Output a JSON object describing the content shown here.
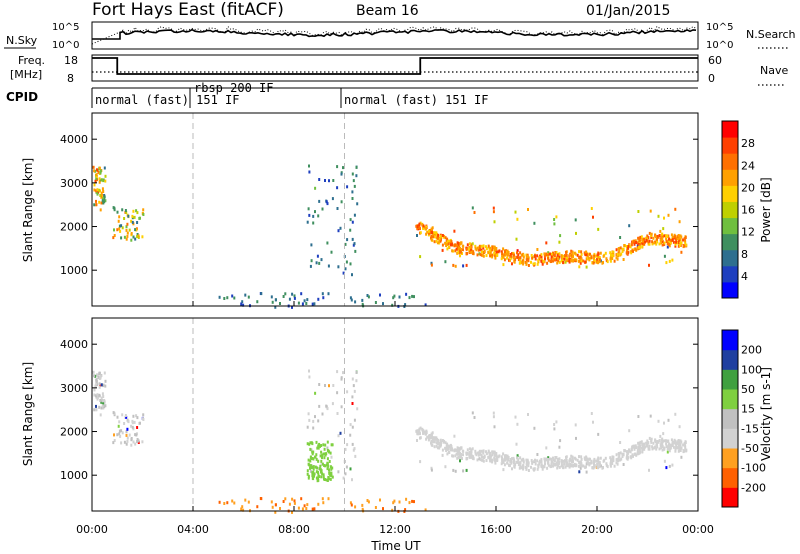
{
  "header": {
    "title": "Fort Hays East (fitACF)",
    "beam": "Beam 16",
    "date": "01/Jan/2015"
  },
  "strips": {
    "nsky_label": "N.Sky",
    "nsearch_label": "N.Search",
    "nsky_ticks": [
      "10^5",
      "10^0"
    ],
    "freq_label_1": "Freq.",
    "freq_label_2": "[MHz]",
    "freq_ticks": [
      "18",
      "8"
    ],
    "nave_label": "Nave",
    "nave_ticks": [
      "60",
      "0"
    ],
    "cpid_label": "CPID",
    "cpid_segments": [
      {
        "label": "normal (fast) 151 IF",
        "start": 0.0
      },
      {
        "label": "rbsp 200 IF",
        "start": 4.0
      },
      {
        "label": "normal (fast) 151 IF",
        "start": 10.0
      }
    ]
  },
  "colors": {
    "power_scale": [
      "#0000ff",
      "#1e3fbf",
      "#2e6f8f",
      "#3f8f5f",
      "#6fbf3f",
      "#bfd000",
      "#ffd000",
      "#ffa000",
      "#ff7000",
      "#ff4000",
      "#ff0000"
    ],
    "velocity_scale": [
      "#ff0000",
      "#ff6000",
      "#ffa020",
      "#d2d2d2",
      "#c0c0c0",
      "#7fd040",
      "#40a040",
      "#2040a0",
      "#0000ff"
    ]
  },
  "chart_data": [
    {
      "type": "heatmap",
      "panel": "power",
      "xlabel": "",
      "ylabel": "Slant Range [km]",
      "xlim": [
        0,
        24
      ],
      "ylim": [
        180,
        4600
      ],
      "yticks": [
        1000,
        2000,
        3000,
        4000
      ],
      "colorbar": {
        "label": "Power [dB]",
        "range": [
          0,
          32
        ],
        "ticks": [
          "4",
          "8",
          "12",
          "16",
          "20",
          "24",
          "28"
        ]
      },
      "scatter_regions": [
        {
          "x": [
            0.0,
            0.5
          ],
          "y": [
            2400,
            3400
          ],
          "value_range": [
            8,
            28
          ]
        },
        {
          "x": [
            0.8,
            2.0
          ],
          "y": [
            1700,
            2500
          ],
          "value_range": [
            8,
            24
          ]
        },
        {
          "x": [
            8.5,
            10.5
          ],
          "y": [
            900,
            3500
          ],
          "value_range": [
            4,
            12
          ]
        },
        {
          "x": [
            12.8,
            23.5
          ],
          "y": [
            1100,
            2500
          ],
          "value_range": [
            4,
            30
          ]
        },
        {
          "x": [
            5.0,
            13.5
          ],
          "y": [
            180,
            500
          ],
          "value_range": [
            4,
            12
          ]
        }
      ],
      "echo_band": {
        "x": [
          12.8,
          23.5
        ],
        "center_km": [
          2050,
          1550,
          1450,
          1250,
          1350,
          1300,
          1750,
          1700
        ],
        "value": 28
      }
    },
    {
      "type": "heatmap",
      "panel": "velocity",
      "xlabel": "Time UT",
      "ylabel": "Slant Range [km]",
      "xlim": [
        0,
        24
      ],
      "ylim": [
        180,
        4600
      ],
      "xticks": [
        "00:00",
        "04:00",
        "08:00",
        "12:00",
        "16:00",
        "20:00",
        "00:00"
      ],
      "yticks": [
        1000,
        2000,
        3000,
        4000
      ],
      "colorbar": {
        "label": "Velocity [m s-1]",
        "range": [
          -250,
          250
        ],
        "ticks": [
          "-200",
          "-100",
          "-50",
          "-15",
          "15",
          "50",
          "100",
          "200"
        ]
      },
      "dominant_velocity_ms": [
        -15,
        15
      ],
      "ground_scatter_regions": [
        {
          "x": [
            12.8,
            23.5
          ],
          "y": [
            1100,
            2500
          ]
        },
        {
          "x": [
            0.0,
            0.5
          ],
          "y": [
            2400,
            3400
          ]
        },
        {
          "x": [
            0.8,
            2.0
          ],
          "y": [
            1700,
            2500
          ]
        }
      ],
      "green_patch": {
        "x": [
          8.5,
          9.5
        ],
        "y": [
          900,
          1800
        ],
        "value_ms": 50
      }
    }
  ]
}
